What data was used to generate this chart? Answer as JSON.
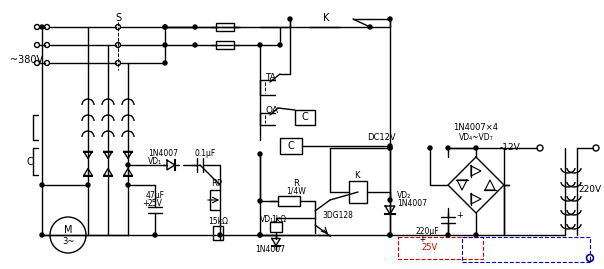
{
  "bg_color": "#ffffff",
  "line_color": "#000000",
  "red_color": "#cc0000",
  "blue_color": "#0000bb",
  "figsize": [
    6.04,
    2.69
  ],
  "dpi": 100,
  "lw": 1.0,
  "labels": {
    "voltage": "~380V",
    "S": "S",
    "K_top": "K",
    "TA": "TA",
    "QA": "QA",
    "DC12V": "DC12V",
    "C_left": "C",
    "C_box": "C",
    "vd_bridge": "1N4007×4",
    "vd_sub": "VD₄~VD₇",
    "vd1_label": "1N4007",
    "vd1_sub": "VD₁",
    "vd2_sub": "VD₂",
    "cap1": "47μF",
    "cap1b": "25V",
    "cap2": "0.1μF",
    "cap3": "220μF",
    "rp": "RP",
    "r": "R",
    "r_sub": "1/4W",
    "res1": "15kΩ",
    "vd3": "VD₁",
    "res2": "1kΩ",
    "diode_bot": "1N4007",
    "transistor": "3DG128",
    "K_box": "K",
    "vd2_label": "1N4007",
    "minus12v": "-12V",
    "v220": "220V",
    "v25": "25V",
    "motor_M": "M",
    "motor_3": "3~"
  }
}
